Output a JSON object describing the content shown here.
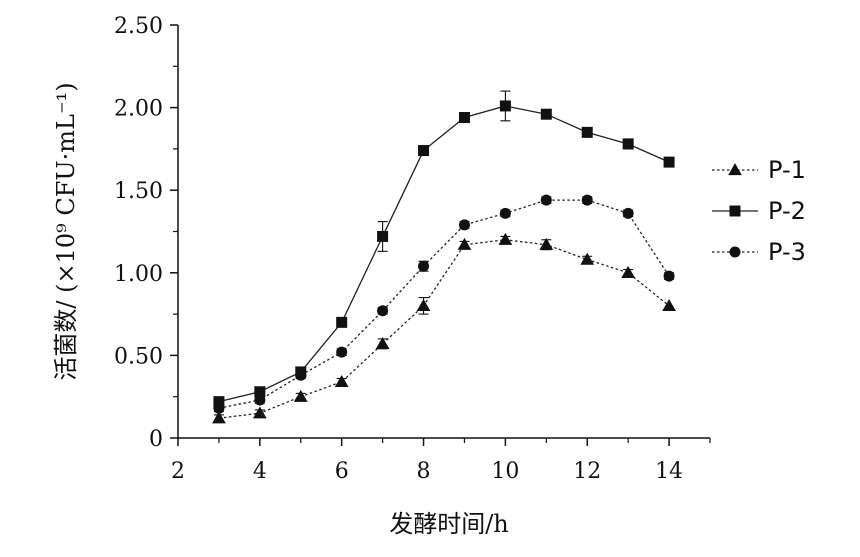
{
  "chart_data": {
    "type": "line",
    "title": "",
    "xlabel": "发酵时间/h",
    "ylabel": "活菌数/ (×10⁹ CFU·mL⁻¹)",
    "xlim": [
      2,
      15
    ],
    "ylim": [
      0,
      2.5
    ],
    "x_ticks": [
      2,
      4,
      6,
      8,
      10,
      12,
      14
    ],
    "y_ticks": [
      0,
      0.5,
      1.0,
      1.5,
      2.0,
      2.5
    ],
    "x_tick_labels": [
      "2",
      "4",
      "6",
      "8",
      "10",
      "12",
      "14"
    ],
    "y_tick_labels": [
      "0",
      "0.50",
      "1.00",
      "1.50",
      "2.00",
      "2.50"
    ],
    "grid": false,
    "legend_position": "right",
    "x": [
      3,
      4,
      5,
      6,
      7,
      8,
      9,
      10,
      11,
      12,
      13,
      14
    ],
    "series": [
      {
        "name": "P-1",
        "marker": "triangle",
        "line_style": "dotted",
        "color": "#222222",
        "values": [
          0.12,
          0.15,
          0.25,
          0.34,
          0.57,
          0.8,
          1.17,
          1.2,
          1.17,
          1.08,
          1.0,
          0.8
        ],
        "errors": [
          0.02,
          0.02,
          0.02,
          0.02,
          0.03,
          0.05,
          0.02,
          0.02,
          0.03,
          0.02,
          0.02,
          0.01
        ]
      },
      {
        "name": "P-2",
        "marker": "square",
        "line_style": "solid",
        "color": "#222222",
        "values": [
          0.22,
          0.28,
          0.4,
          0.7,
          1.22,
          1.74,
          1.94,
          2.01,
          1.96,
          1.85,
          1.78,
          1.67
        ],
        "errors": [
          0.02,
          0.02,
          0.02,
          0.02,
          0.09,
          0.02,
          0.02,
          0.09,
          0.02,
          0.02,
          0.03,
          0.02
        ]
      },
      {
        "name": "P-3",
        "marker": "circle",
        "line_style": "dotted",
        "color": "#222222",
        "values": [
          0.18,
          0.23,
          0.38,
          0.52,
          0.77,
          1.04,
          1.29,
          1.36,
          1.44,
          1.44,
          1.36,
          0.98
        ],
        "errors": [
          0.02,
          0.02,
          0.02,
          0.02,
          0.02,
          0.03,
          0.02,
          0.02,
          0.02,
          0.02,
          0.02,
          0.02
        ]
      }
    ]
  }
}
